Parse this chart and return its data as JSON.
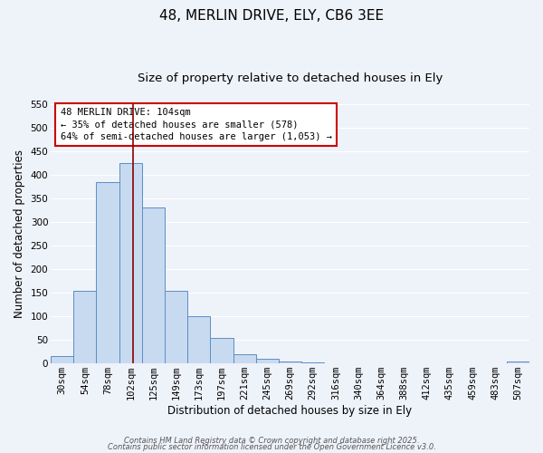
{
  "title": "48, MERLIN DRIVE, ELY, CB6 3EE",
  "subtitle": "Size of property relative to detached houses in Ely",
  "xlabel": "Distribution of detached houses by size in Ely",
  "ylabel": "Number of detached properties",
  "bar_labels": [
    "30sqm",
    "54sqm",
    "78sqm",
    "102sqm",
    "125sqm",
    "149sqm",
    "173sqm",
    "197sqm",
    "221sqm",
    "245sqm",
    "269sqm",
    "292sqm",
    "316sqm",
    "340sqm",
    "364sqm",
    "388sqm",
    "412sqm",
    "435sqm",
    "459sqm",
    "483sqm",
    "507sqm"
  ],
  "bar_values": [
    15,
    155,
    385,
    425,
    330,
    155,
    100,
    55,
    20,
    10,
    4,
    2,
    1,
    1,
    0,
    0,
    0,
    0,
    0,
    0,
    5
  ],
  "bar_color": "#c8daf0",
  "bar_edge_color": "#5b8ec4",
  "property_line_color": "#8b0000",
  "ylim": [
    0,
    550
  ],
  "yticks": [
    0,
    50,
    100,
    150,
    200,
    250,
    300,
    350,
    400,
    450,
    500,
    550
  ],
  "annotation_title": "48 MERLIN DRIVE: 104sqm",
  "annotation_line1": "← 35% of detached houses are smaller (578)",
  "annotation_line2": "64% of semi-detached houses are larger (1,053) →",
  "annotation_box_color": "#ffffff",
  "annotation_box_edge": "#cc0000",
  "footer_line1": "Contains HM Land Registry data © Crown copyright and database right 2025.",
  "footer_line2": "Contains public sector information licensed under the Open Government Licence v3.0.",
  "background_color": "#eef2f9",
  "grid_color": "#ffffff",
  "title_fontsize": 11,
  "subtitle_fontsize": 9.5,
  "axis_label_fontsize": 8.5,
  "tick_fontsize": 7.5,
  "annotation_fontsize": 7.5,
  "footer_fontsize": 6.0
}
